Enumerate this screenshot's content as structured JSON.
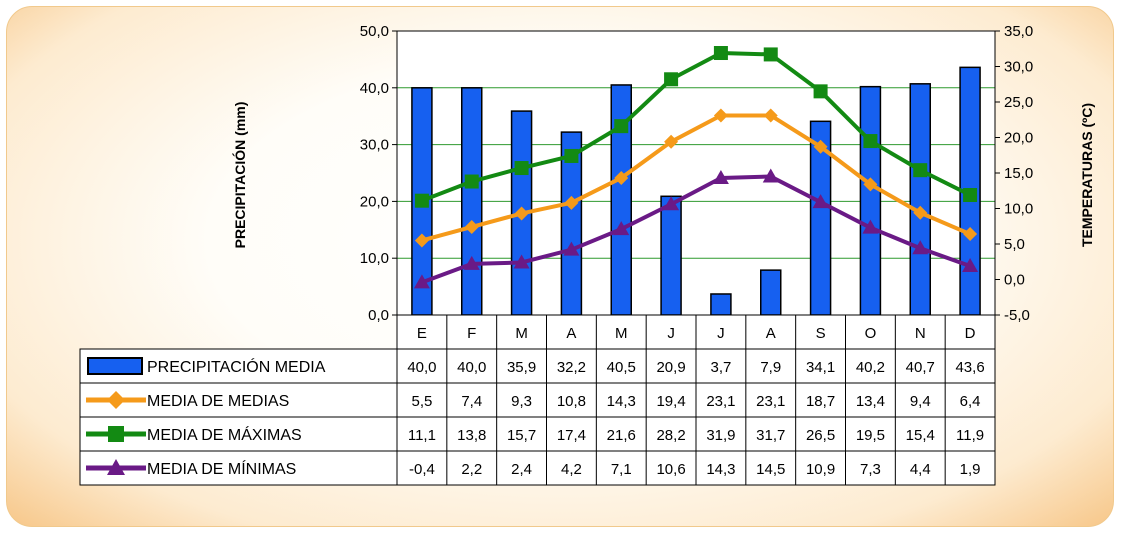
{
  "chart_data": {
    "type": "bar-line",
    "categories": [
      "E",
      "F",
      "M",
      "A",
      "M",
      "J",
      "J",
      "A",
      "S",
      "O",
      "N",
      "D"
    ],
    "left_axis": {
      "label": "PRECIPITACIÓN (mm)",
      "range": [
        0,
        50
      ],
      "ticks": [
        "0,0",
        "10,0",
        "20,0",
        "30,0",
        "40,0",
        "50,0"
      ]
    },
    "right_axis": {
      "label": "TEMPERATURAS (ºC)",
      "range": [
        -5,
        35
      ],
      "ticks": [
        "-5,0",
        "0,0",
        "5,0",
        "10,0",
        "15,0",
        "20,0",
        "25,0",
        "30,0",
        "35,0"
      ]
    },
    "grid": true,
    "series": [
      {
        "name": "PRECIPITACIÓN MEDIA",
        "kind": "bar",
        "axis": "left",
        "color": "#1660f0",
        "values": [
          40.0,
          40.0,
          35.9,
          32.2,
          40.5,
          20.9,
          3.7,
          7.9,
          34.1,
          40.2,
          40.7,
          43.6
        ],
        "labels": [
          "40,0",
          "40,0",
          "35,9",
          "32,2",
          "40,5",
          "20,9",
          "3,7",
          "7,9",
          "34,1",
          "40,2",
          "40,7",
          "43,6"
        ]
      },
      {
        "name": "MEDIA DE MEDIAS",
        "kind": "line",
        "axis": "right",
        "marker": "diamond",
        "color": "#f59a1a",
        "values": [
          5.5,
          7.4,
          9.3,
          10.8,
          14.3,
          19.4,
          23.1,
          23.1,
          18.7,
          13.4,
          9.4,
          6.4
        ],
        "labels": [
          "5,5",
          "7,4",
          "9,3",
          "10,8",
          "14,3",
          "19,4",
          "23,1",
          "23,1",
          "18,7",
          "13,4",
          "9,4",
          "6,4"
        ]
      },
      {
        "name": "MEDIA DE MÁXIMAS",
        "kind": "line",
        "axis": "right",
        "marker": "square",
        "color": "#138a13",
        "values": [
          11.1,
          13.8,
          15.7,
          17.4,
          21.6,
          28.2,
          31.9,
          31.7,
          26.5,
          19.5,
          15.4,
          11.9
        ],
        "labels": [
          "11,1",
          "13,8",
          "15,7",
          "17,4",
          "21,6",
          "28,2",
          "31,9",
          "31,7",
          "26,5",
          "19,5",
          "15,4",
          "11,9"
        ]
      },
      {
        "name": "MEDIA DE MÍNIMAS",
        "kind": "line",
        "axis": "right",
        "marker": "triangle",
        "color": "#6a1a86",
        "values": [
          -0.4,
          2.2,
          2.4,
          4.2,
          7.1,
          10.6,
          14.3,
          14.5,
          10.9,
          7.3,
          4.4,
          1.9
        ],
        "labels": [
          "-0,4",
          "2,2",
          "2,4",
          "4,2",
          "7,1",
          "10,6",
          "14,3",
          "14,5",
          "10,9",
          "7,3",
          "4,4",
          "1,9"
        ]
      }
    ]
  }
}
